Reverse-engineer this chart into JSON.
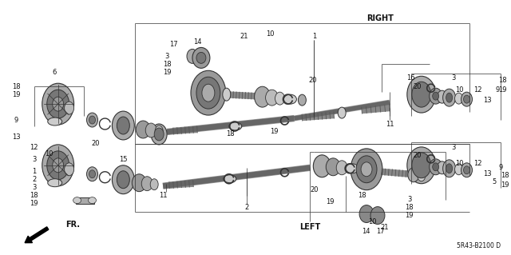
{
  "bg_color": "#ffffff",
  "line_color": "#333333",
  "part_dark": "#555555",
  "part_mid": "#888888",
  "part_light": "#bbbbbb",
  "figsize": [
    6.4,
    3.19
  ],
  "dpi": 100,
  "right_label": "RIGHT",
  "left_label": "LEFT",
  "fr_label": "FR.",
  "diagram_id": "5R43-B2100 D"
}
